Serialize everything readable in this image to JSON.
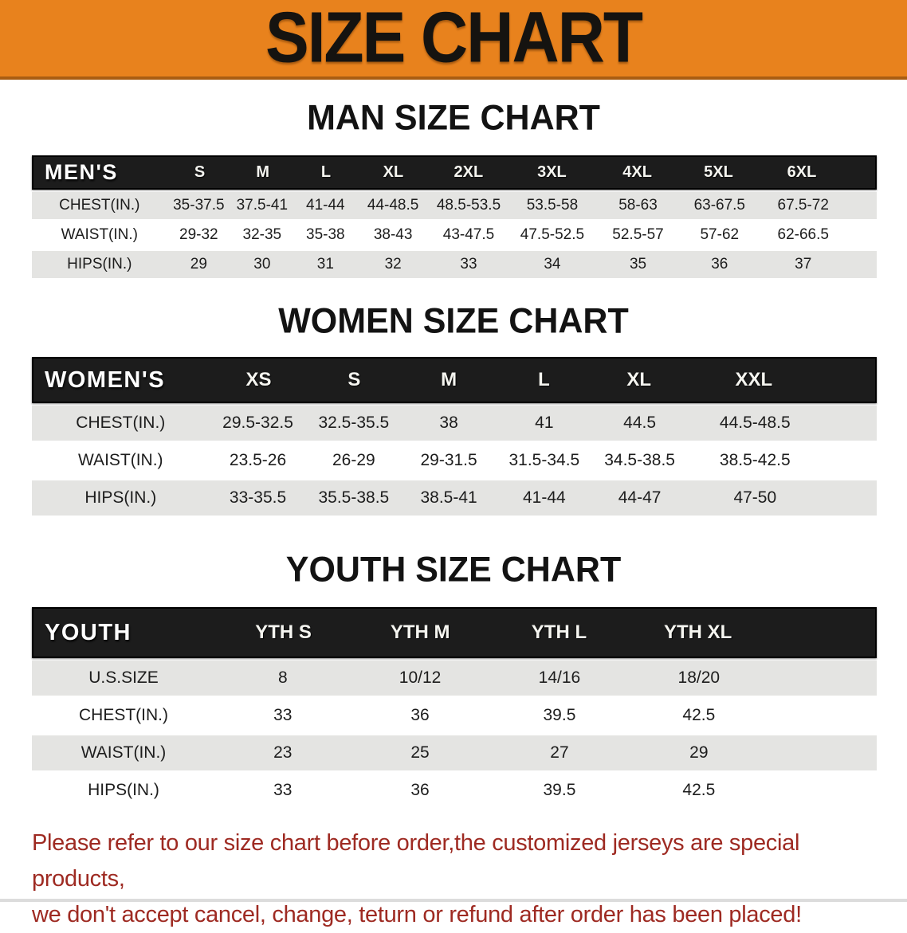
{
  "banner": {
    "title": "SIZE CHART"
  },
  "colors": {
    "banner_bg": "#e8821d",
    "table_header_bg": "#1c1c1c",
    "table_header_text": "#ffffff",
    "row_stripe": "#e4e4e2",
    "note_red": "#9e2a22"
  },
  "tables": [
    {
      "heading": "MAN SIZE CHART",
      "corner_label": "MEN'S",
      "columns": [
        "S",
        "M",
        "L",
        "XL",
        "2XL",
        "3XL",
        "4XL",
        "5XL",
        "6XL"
      ],
      "rows": [
        {
          "label": "CHEST(IN.)",
          "values": [
            "35-37.5",
            "37.5-41",
            "41-44",
            "44-48.5",
            "48.5-53.5",
            "53.5-58",
            "58-63",
            "63-67.5",
            "67.5-72"
          ]
        },
        {
          "label": "WAIST(IN.)",
          "values": [
            "29-32",
            "32-35",
            "35-38",
            "38-43",
            "43-47.5",
            "47.5-52.5",
            "52.5-57",
            "57-62",
            "62-66.5"
          ]
        },
        {
          "label": "HIPS(IN.)",
          "values": [
            "29",
            "30",
            "31",
            "32",
            "33",
            "34",
            "35",
            "36",
            "37"
          ]
        }
      ]
    },
    {
      "heading": "WOMEN SIZE CHART",
      "corner_label": "WOMEN'S",
      "columns": [
        "XS",
        "S",
        "M",
        "L",
        "XL",
        "XXL"
      ],
      "rows": [
        {
          "label": "CHEST(IN.)",
          "values": [
            "29.5-32.5",
            "32.5-35.5",
            "38",
            "41",
            "44.5",
            "44.5-48.5"
          ]
        },
        {
          "label": "WAIST(IN.)",
          "values": [
            "23.5-26",
            "26-29",
            "29-31.5",
            "31.5-34.5",
            "34.5-38.5",
            "38.5-42.5"
          ]
        },
        {
          "label": "HIPS(IN.)",
          "values": [
            "33-35.5",
            "35.5-38.5",
            "38.5-41",
            "41-44",
            "44-47",
            "47-50"
          ]
        }
      ]
    },
    {
      "heading": "YOUTH SIZE CHART",
      "corner_label": "YOUTH",
      "columns": [
        "YTH S",
        "YTH M",
        "YTH L",
        "YTH XL"
      ],
      "rows": [
        {
          "label": "U.S.SIZE",
          "values": [
            "8",
            "10/12",
            "14/16",
            "18/20"
          ]
        },
        {
          "label": "CHEST(IN.)",
          "values": [
            "33",
            "36",
            "39.5",
            "42.5"
          ]
        },
        {
          "label": "WAIST(IN.)",
          "values": [
            "23",
            "25",
            "27",
            "29"
          ]
        },
        {
          "label": "HIPS(IN.)",
          "values": [
            "33",
            "36",
            "39.5",
            "42.5"
          ]
        }
      ]
    }
  ],
  "note": {
    "line1": "Please refer to our size chart before order,the customized jerseys are special products,",
    "line2": "we don't accept cancel, change, teturn or refund after order has been placed!"
  }
}
